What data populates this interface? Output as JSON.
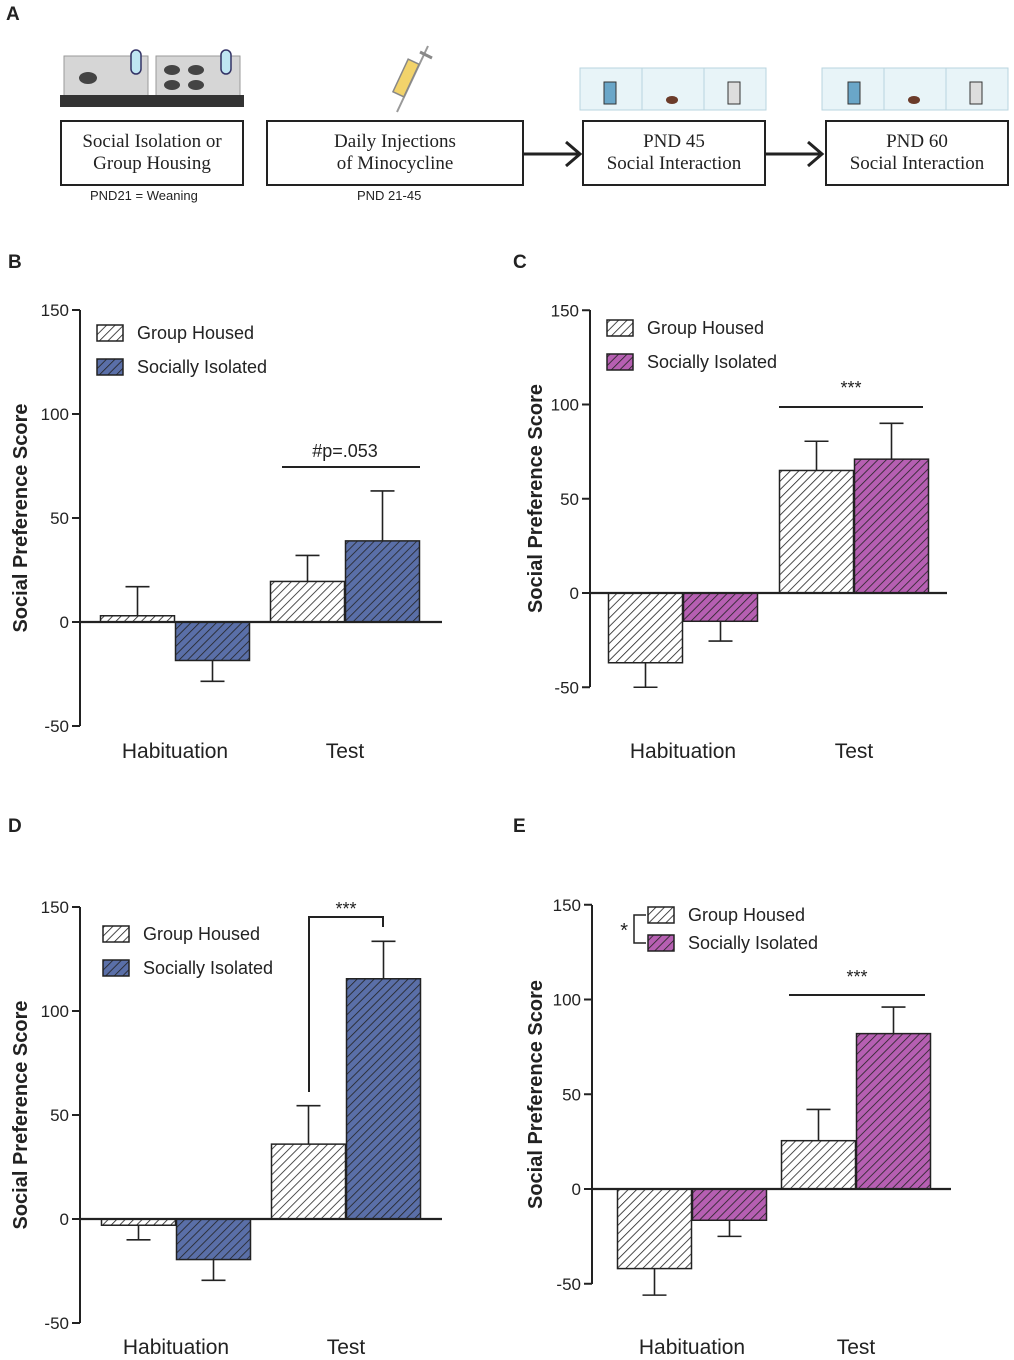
{
  "panel_a": {
    "letter": "A",
    "steps": [
      {
        "line1": "Social Isolation or",
        "line2": "Group Housing"
      },
      {
        "line1": "Daily Injections",
        "line2": "of Minocycline"
      },
      {
        "line1": "PND 45",
        "line2": "Social Interaction"
      },
      {
        "line1": "PND 60",
        "line2": "Social Interaction"
      }
    ],
    "notes": [
      "PND21 = Weaning",
      "PND 21-45"
    ]
  },
  "colors": {
    "group_housed_fill": "#ffffff",
    "blue_fill": "#5a6fa8",
    "purple_fill": "#b65fb2",
    "hatch": "#222222"
  },
  "chart_data": [
    {
      "panel": "B",
      "type": "bar",
      "ylabel": "Social Preference Score",
      "ylim": [
        -50,
        150
      ],
      "yticks": [
        "150",
        "100",
        "50",
        "0",
        "-50"
      ],
      "categories": [
        "Habituation",
        "Test"
      ],
      "series": [
        {
          "name": "Group Housed",
          "values": [
            3,
            19.5
          ],
          "errors": [
            14,
            12.5
          ]
        },
        {
          "name": "Socially Isolated",
          "values": [
            -18.5,
            39
          ],
          "errors": [
            10,
            24
          ]
        }
      ],
      "legend": [
        "Group Housed",
        "Socially Isolated"
      ],
      "annotation": "#p=.053"
    },
    {
      "panel": "C",
      "type": "bar",
      "ylabel": "Social Preference Score",
      "ylim": [
        -50,
        150
      ],
      "yticks": [
        "150",
        "100",
        "50",
        "0",
        "-50"
      ],
      "categories": [
        "Habituation",
        "Test"
      ],
      "series": [
        {
          "name": "Group Housed",
          "values": [
            -37,
            65
          ],
          "errors": [
            13,
            15.5
          ]
        },
        {
          "name": "Socially Isolated",
          "values": [
            -15,
            71
          ],
          "errors": [
            10.5,
            19
          ]
        }
      ],
      "legend": [
        "Group Housed",
        "Socially Isolated"
      ],
      "annotation": "***"
    },
    {
      "panel": "D",
      "type": "bar",
      "ylabel": "Social Preference Score",
      "ylim": [
        -50,
        150
      ],
      "yticks": [
        "150",
        "100",
        "50",
        "0",
        "-50"
      ],
      "categories": [
        "Habituation",
        "Test"
      ],
      "series": [
        {
          "name": "Group Housed",
          "values": [
            -3,
            36
          ],
          "errors": [
            7,
            18.5
          ]
        },
        {
          "name": "Socially Isolated",
          "values": [
            -19.5,
            115.5
          ],
          "errors": [
            10,
            18
          ]
        }
      ],
      "legend": [
        "Group Housed",
        "Socially Isolated"
      ],
      "annotation": "***"
    },
    {
      "panel": "E",
      "type": "bar",
      "ylabel": "Social Preference Score",
      "ylim": [
        -50,
        150
      ],
      "yticks": [
        "150",
        "100",
        "50",
        "0",
        "-50"
      ],
      "categories": [
        "Habituation",
        "Test"
      ],
      "series": [
        {
          "name": "Group Housed",
          "values": [
            -42,
            25.5
          ],
          "errors": [
            14,
            16.5
          ]
        },
        {
          "name": "Socially Isolated",
          "values": [
            -16.5,
            82
          ],
          "errors": [
            8.5,
            14
          ]
        }
      ],
      "legend": [
        "Group Housed",
        "Socially Isolated"
      ],
      "annotation": "***",
      "legend_annotation": "*"
    }
  ]
}
